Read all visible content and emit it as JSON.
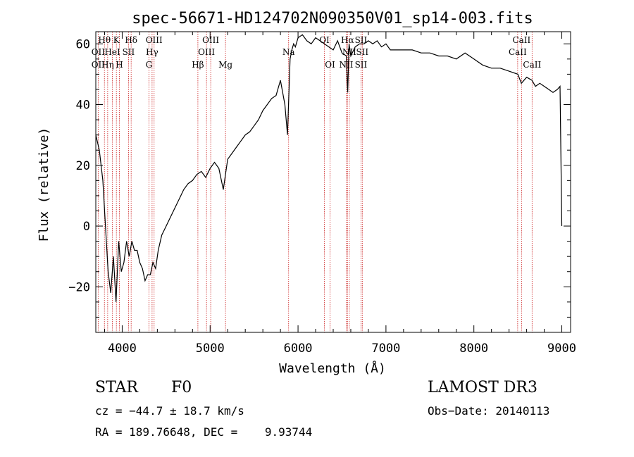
{
  "chart_data": {
    "type": "line",
    "title": "spec-56671-HD124702N090350V01_sp14-003.fits",
    "xlabel": "Wavelength (Å)",
    "ylabel": "Flux (relative)",
    "xlim": [
      3700,
      9100
    ],
    "ylim": [
      -35,
      64
    ],
    "xticks": [
      4000,
      5000,
      6000,
      7000,
      8000,
      9000
    ],
    "yticks": [
      -20,
      0,
      20,
      40,
      60
    ],
    "series": [
      {
        "x": [
          3700,
          3740,
          3780,
          3810,
          3840,
          3870,
          3900,
          3930,
          3960,
          3990,
          4020,
          4050,
          4080,
          4110,
          4140,
          4170,
          4200,
          4230,
          4260,
          4290,
          4320,
          4350,
          4380,
          4410,
          4450,
          4500,
          4550,
          4600,
          4650,
          4700,
          4750,
          4800,
          4850,
          4900,
          4950,
          5000,
          5050,
          5100,
          5150,
          5180,
          5200,
          5250,
          5300,
          5350,
          5400,
          5450,
          5500,
          5550,
          5600,
          5650,
          5700,
          5750,
          5800,
          5850,
          5880,
          5910,
          5930,
          5950,
          5970,
          6000,
          6050,
          6100,
          6150,
          6200,
          6250,
          6300,
          6350,
          6400,
          6450,
          6500,
          6550,
          6565,
          6580,
          6600,
          6650,
          6700,
          6750,
          6800,
          6850,
          6900,
          6950,
          7000,
          7050,
          7100,
          7150,
          7200,
          7300,
          7400,
          7500,
          7600,
          7700,
          7800,
          7900,
          8000,
          8100,
          8200,
          8300,
          8400,
          8500,
          8540,
          8600,
          8660,
          8700,
          8750,
          8800,
          8850,
          8900,
          8950,
          8980,
          9000
        ],
        "values": [
          30,
          25,
          15,
          0,
          -15,
          -22,
          -10,
          -25,
          -5,
          -15,
          -12,
          -5,
          -10,
          -5,
          -8,
          -8,
          -12,
          -14,
          -18,
          -16,
          -16,
          -12,
          -14,
          -8,
          -3,
          0,
          3,
          6,
          9,
          12,
          14,
          15,
          17,
          18,
          16,
          19,
          21,
          19,
          12,
          18,
          22,
          24,
          26,
          28,
          30,
          31,
          33,
          35,
          38,
          40,
          42,
          43,
          48,
          40,
          30,
          55,
          58,
          60,
          59,
          62,
          63,
          61,
          60,
          62,
          61,
          60,
          59,
          58,
          61,
          57,
          56,
          44,
          60,
          56,
          59,
          60,
          60,
          61,
          60,
          61,
          59,
          60,
          58,
          58,
          58,
          58,
          58,
          57,
          57,
          56,
          56,
          55,
          57,
          55,
          53,
          52,
          52,
          51,
          50,
          47,
          49,
          48,
          46,
          47,
          46,
          45,
          44,
          45,
          46,
          0
        ]
      }
    ],
    "spectral_lines": [
      {
        "label": "OII",
        "x": 3727,
        "row": 1
      },
      {
        "label": "OII",
        "x": 3727,
        "row": 2
      },
      {
        "label": "Hθ",
        "x": 3798,
        "row": 0
      },
      {
        "label": "Hη",
        "x": 3835,
        "row": 2
      },
      {
        "label": "HeI",
        "x": 3889,
        "row": 1
      },
      {
        "label": "K",
        "x": 3934,
        "row": 0
      },
      {
        "label": "H",
        "x": 3968,
        "row": 2
      },
      {
        "label": "SII",
        "x": 4072,
        "row": 1
      },
      {
        "label": "Hδ",
        "x": 4102,
        "row": 0
      },
      {
        "label": "G",
        "x": 4304,
        "row": 2
      },
      {
        "label": "Hγ",
        "x": 4340,
        "row": 1
      },
      {
        "label": "OIII",
        "x": 4363,
        "row": 0
      },
      {
        "label": "Hβ",
        "x": 4861,
        "row": 2
      },
      {
        "label": "OIII",
        "x": 4959,
        "row": 1
      },
      {
        "label": "OIII",
        "x": 5007,
        "row": 0
      },
      {
        "label": "Mg",
        "x": 5175,
        "row": 2
      },
      {
        "label": "Na",
        "x": 5893,
        "row": 1
      },
      {
        "label": "OI",
        "x": 6300,
        "row": 0
      },
      {
        "label": "OI",
        "x": 6364,
        "row": 2
      },
      {
        "label": "NII",
        "x": 6548,
        "row": 2
      },
      {
        "label": "Hα",
        "x": 6563,
        "row": 0
      },
      {
        "label": "NII",
        "x": 6583,
        "row": 1
      },
      {
        "label": "SII",
        "x": 6716,
        "row": 0
      },
      {
        "label": "SII",
        "x": 6716,
        "row": 2
      },
      {
        "label": "SII",
        "x": 6731,
        "row": 1
      },
      {
        "label": "CaII",
        "x": 8498,
        "row": 1
      },
      {
        "label": "CaII",
        "x": 8542,
        "row": 0
      },
      {
        "label": "CaII",
        "x": 8662,
        "row": 2
      }
    ]
  },
  "info": {
    "object_type": "STAR",
    "subclass": "F0",
    "survey": "LAMOST DR3",
    "cz": "cz = −44.7 ± 18.7 km/s",
    "obs_date": "Obs−Date: 20140113",
    "coords": "RA = 189.76648, DEC =    9.93744"
  },
  "colors": {
    "line_marker": "#cc2222",
    "spectrum": "#000000"
  }
}
